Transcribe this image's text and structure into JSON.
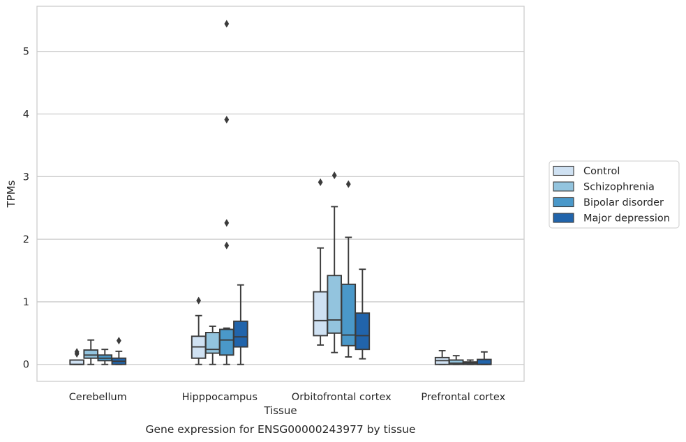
{
  "chart_data": {
    "type": "box",
    "caption": "Gene expression for ENSG00000243977 by tissue",
    "xlabel": "Tissue",
    "ylabel": "TPMs",
    "ylim": [
      -0.27,
      5.72
    ],
    "yticks": [
      "0",
      "1",
      "2",
      "3",
      "4",
      "5"
    ],
    "grid": "horizontal",
    "legend_position": "right",
    "categories": [
      "Cerebellum",
      "Hipppocampus",
      "Orbitofrontal cortex",
      "Prefrontal cortex"
    ],
    "series": [
      {
        "name": "Control",
        "color": "#cfe1f2",
        "boxes": [
          {
            "whislo": 0.0,
            "q1": 0.0,
            "med": 0.0,
            "q3": 0.07,
            "whishi": 0.07,
            "fliers": [
              0.17,
              0.2
            ]
          },
          {
            "whislo": 0.0,
            "q1": 0.1,
            "med": 0.28,
            "q3": 0.45,
            "whishi": 0.78,
            "fliers": [
              1.02
            ]
          },
          {
            "whislo": 0.31,
            "q1": 0.46,
            "med": 0.7,
            "q3": 1.16,
            "whishi": 1.86,
            "fliers": [
              2.91
            ]
          },
          {
            "whislo": 0.0,
            "q1": 0.0,
            "med": 0.06,
            "q3": 0.11,
            "whishi": 0.22,
            "fliers": []
          }
        ]
      },
      {
        "name": "Schizophrenia",
        "color": "#93c4de",
        "boxes": [
          {
            "whislo": 0.0,
            "q1": 0.1,
            "med": 0.15,
            "q3": 0.23,
            "whishi": 0.39,
            "fliers": []
          },
          {
            "whislo": 0.0,
            "q1": 0.18,
            "med": 0.24,
            "q3": 0.51,
            "whishi": 0.61,
            "fliers": []
          },
          {
            "whislo": 0.19,
            "q1": 0.5,
            "med": 0.71,
            "q3": 1.42,
            "whishi": 2.52,
            "fliers": [
              3.02
            ]
          },
          {
            "whislo": 0.0,
            "q1": 0.0,
            "med": 0.02,
            "q3": 0.07,
            "whishi": 0.14,
            "fliers": []
          }
        ]
      },
      {
        "name": "Bipolar disorder",
        "color": "#4a98c9",
        "boxes": [
          {
            "whislo": 0.0,
            "q1": 0.06,
            "med": 0.1,
            "q3": 0.15,
            "whishi": 0.24,
            "fliers": []
          },
          {
            "whislo": 0.0,
            "q1": 0.15,
            "med": 0.39,
            "q3": 0.56,
            "whishi": 0.58,
            "fliers": [
              1.9,
              2.26,
              3.91,
              5.44
            ]
          },
          {
            "whislo": 0.12,
            "q1": 0.3,
            "med": 0.47,
            "q3": 1.28,
            "whishi": 2.03,
            "fliers": [
              2.88
            ]
          },
          {
            "whislo": 0.0,
            "q1": 0.0,
            "med": 0.02,
            "q3": 0.04,
            "whishi": 0.07,
            "fliers": []
          }
        ]
      },
      {
        "name": "Major depression",
        "color": "#2164ab",
        "boxes": [
          {
            "whislo": 0.0,
            "q1": 0.0,
            "med": 0.05,
            "q3": 0.1,
            "whishi": 0.21,
            "fliers": [
              0.38
            ]
          },
          {
            "whislo": 0.0,
            "q1": 0.28,
            "med": 0.44,
            "q3": 0.69,
            "whishi": 1.27,
            "fliers": []
          },
          {
            "whislo": 0.09,
            "q1": 0.24,
            "med": 0.46,
            "q3": 0.82,
            "whishi": 1.52,
            "fliers": []
          },
          {
            "whislo": 0.0,
            "q1": 0.0,
            "med": 0.0,
            "q3": 0.08,
            "whishi": 0.2,
            "fliers": []
          }
        ]
      }
    ]
  }
}
